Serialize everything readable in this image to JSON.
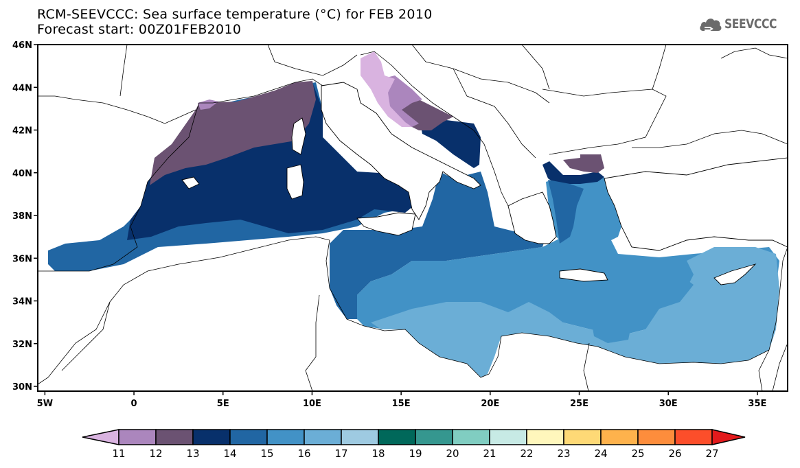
{
  "header": {
    "title": "RCM-SEEVCCC: Sea surface temperature (°C) for FEB 2010",
    "subtitle": "Forecast start: 00Z01FEB2010",
    "logo_text": "SEEVCCC",
    "logo_icon": "cloud-icon"
  },
  "map": {
    "variable": "Sea surface temperature",
    "units": "°C",
    "period": "FEB 2010",
    "forecast_start": "00Z01FEB2010",
    "lon_range": [
      -5.4,
      36.7
    ],
    "lat_range": [
      30,
      46
    ],
    "lon_ticks": [
      {
        "value": -5,
        "label": "5W"
      },
      {
        "value": 0,
        "label": "0"
      },
      {
        "value": 5,
        "label": "5E"
      },
      {
        "value": 10,
        "label": "10E"
      },
      {
        "value": 15,
        "label": "15E"
      },
      {
        "value": 20,
        "label": "20E"
      },
      {
        "value": 25,
        "label": "25E"
      },
      {
        "value": 30,
        "label": "30E"
      },
      {
        "value": 35,
        "label": "35E"
      }
    ],
    "lat_ticks": [
      {
        "value": 46,
        "label": "46N"
      },
      {
        "value": 44,
        "label": "44N"
      },
      {
        "value": 42,
        "label": "42N"
      },
      {
        "value": 40,
        "label": "40N"
      },
      {
        "value": 38,
        "label": "38N"
      },
      {
        "value": 36,
        "label": "36N"
      },
      {
        "value": 34,
        "label": "34N"
      },
      {
        "value": 32,
        "label": "32N"
      },
      {
        "value": 30,
        "label": "30N"
      }
    ],
    "regions": [
      {
        "name": "western-med",
        "class": "14-15"
      },
      {
        "name": "gulf-of-lion-ligurian",
        "class": "13-14"
      },
      {
        "name": "tyrrhenian",
        "class": "13-14"
      },
      {
        "name": "northern-adriatic",
        "class": "<12"
      },
      {
        "name": "central-adriatic",
        "class": "12-13"
      },
      {
        "name": "southern-adriatic",
        "class": "13-14"
      },
      {
        "name": "ionian-central",
        "class": "15-16"
      },
      {
        "name": "levantine",
        "class": "16-17"
      },
      {
        "name": "north-aegean",
        "class": "13-14"
      }
    ]
  },
  "colorbar": {
    "labels": [
      "11",
      "12",
      "13",
      "14",
      "15",
      "16",
      "17",
      "18",
      "19",
      "20",
      "21",
      "22",
      "23",
      "24",
      "25",
      "26",
      "27"
    ],
    "colors": [
      "#d9b3e0",
      "#ab86bd",
      "#6b5272",
      "#08306b",
      "#2166a3",
      "#4292c6",
      "#6baed6",
      "#9ecae1",
      "#00685a",
      "#35978f",
      "#80cdc1",
      "#c7eae5",
      "#fff7bc",
      "#fed976",
      "#feb24c",
      "#fd8d3c",
      "#fc4e2a",
      "#e31a1c"
    ]
  }
}
